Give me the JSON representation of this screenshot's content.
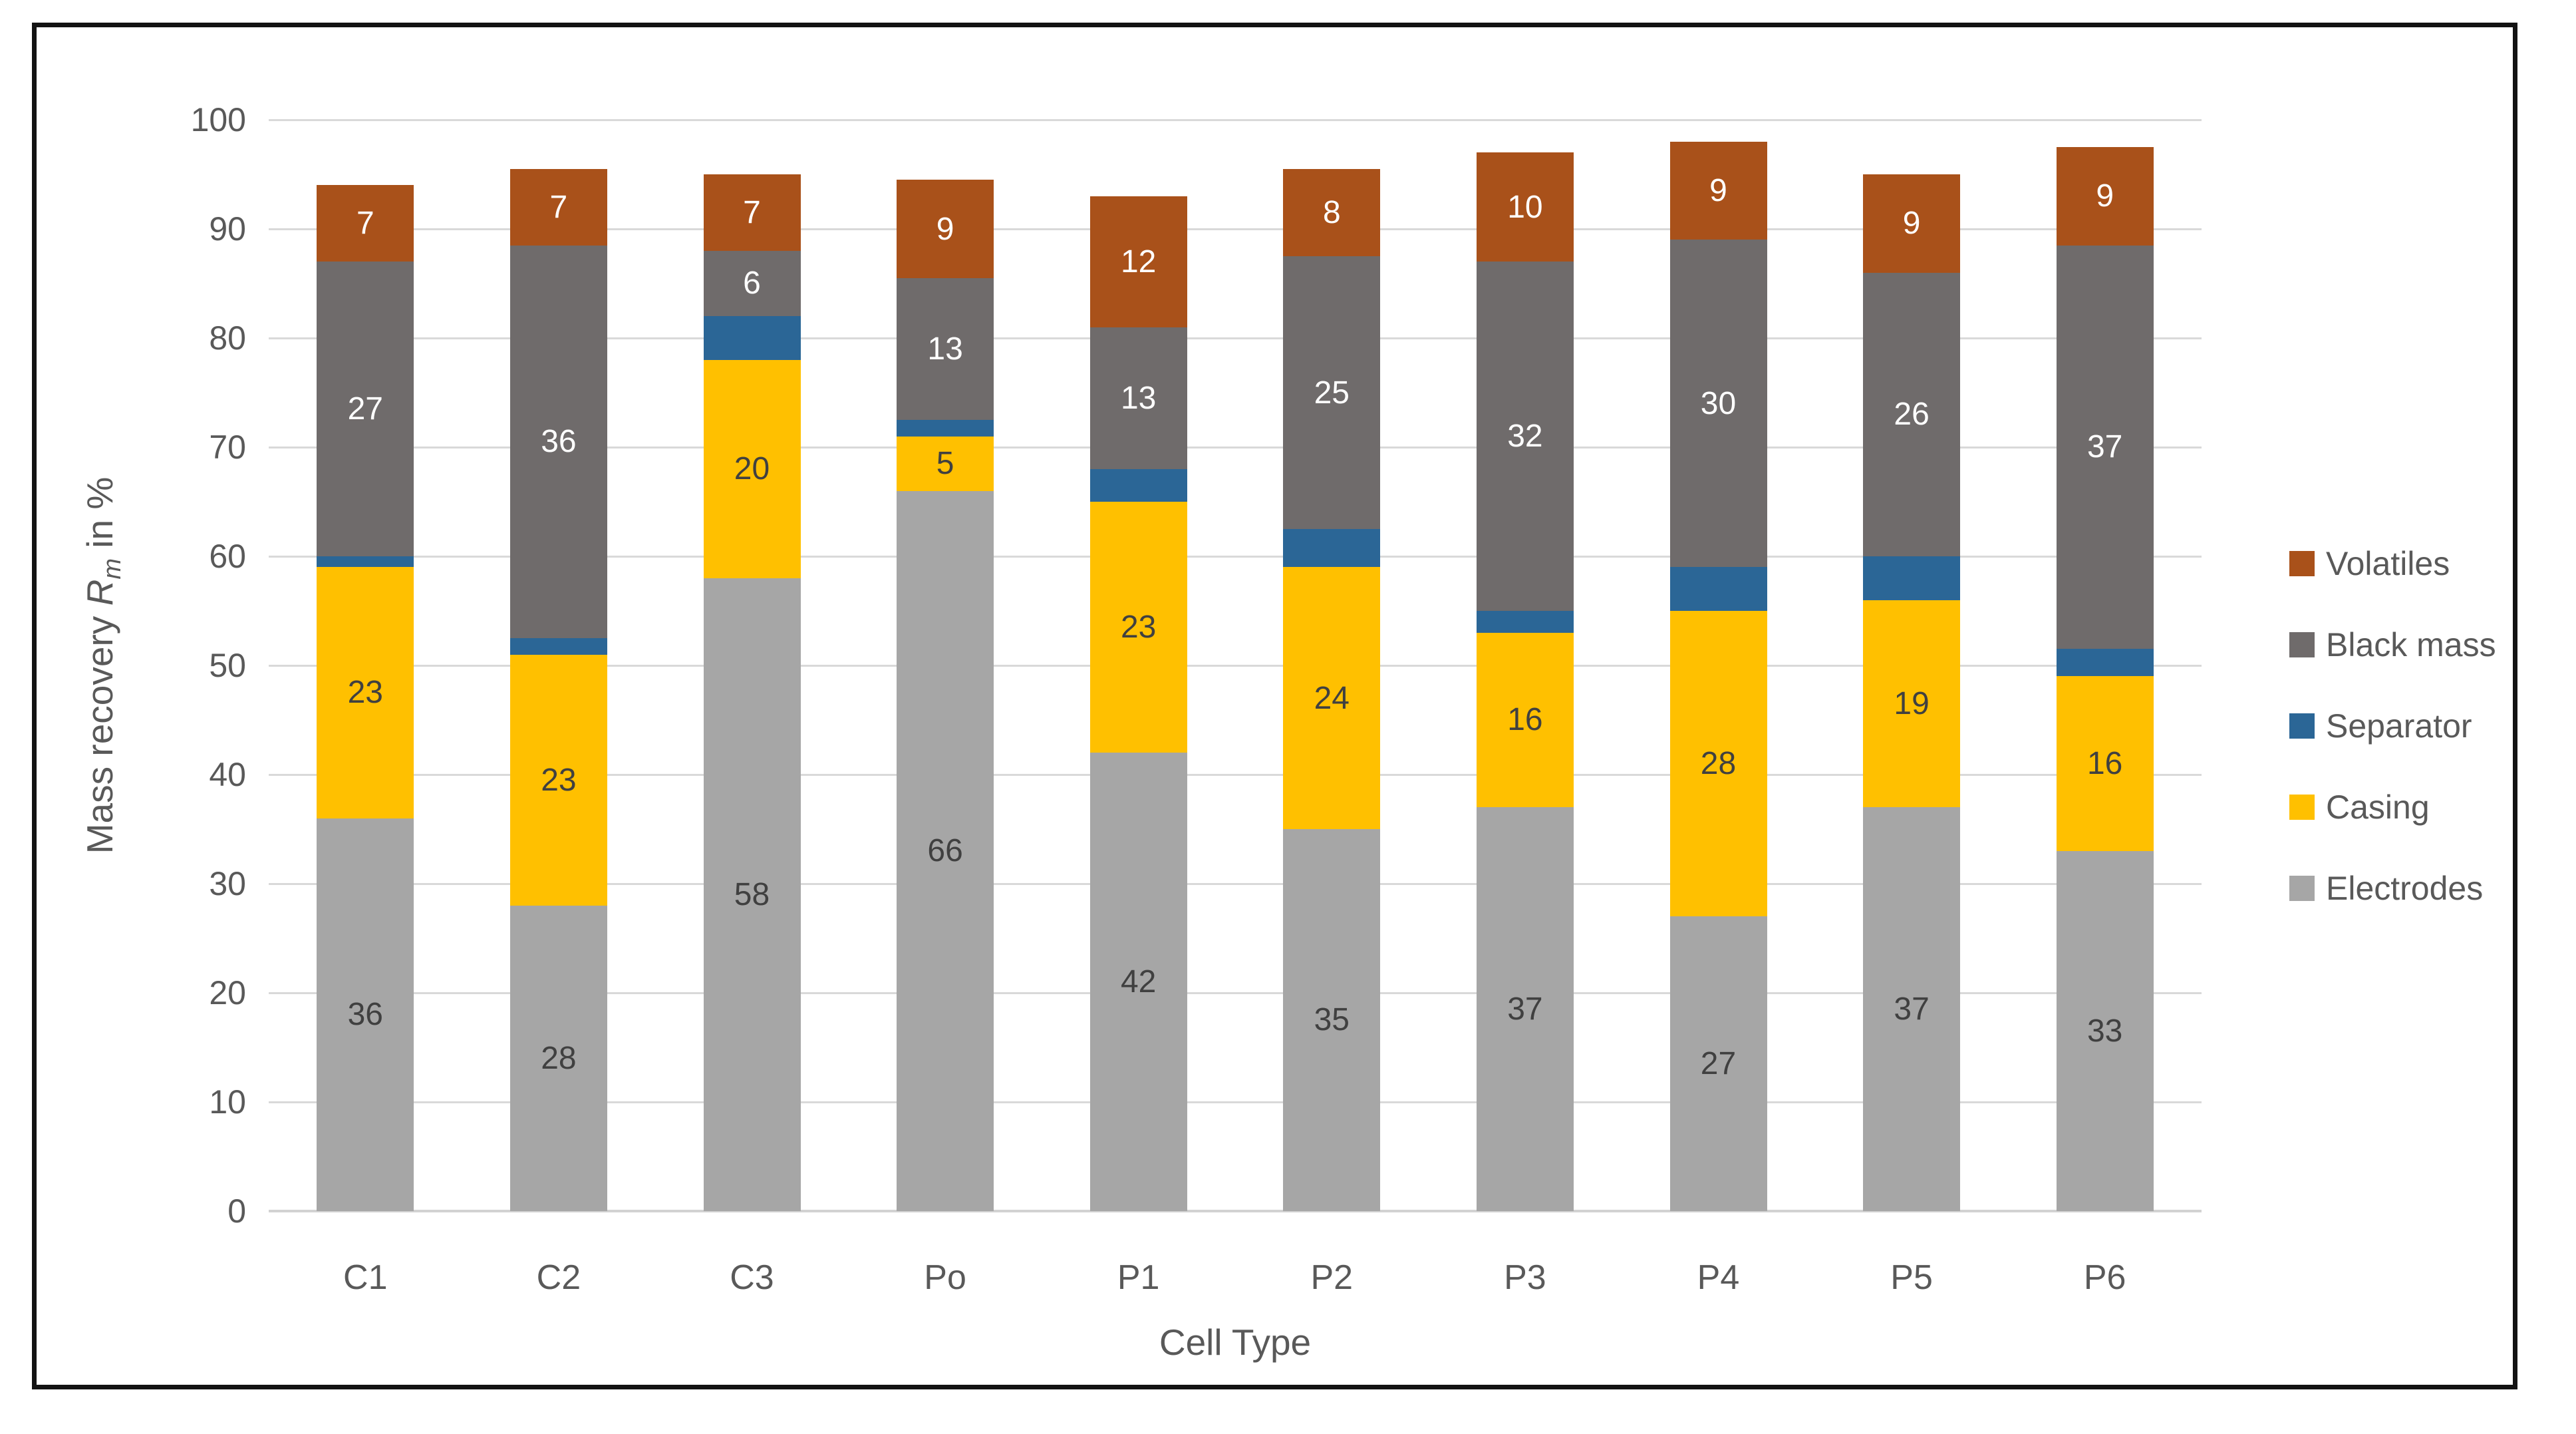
{
  "chart_data": {
    "type": "bar",
    "stacked": true,
    "title": "",
    "xlabel": "Cell Type",
    "ylabel": "Mass recovery Rm in %",
    "ylabel_parts": {
      "prefix": "Mass recovery ",
      "var": "R",
      "sub": "m",
      "suffix": " in %"
    },
    "categories": [
      "C1",
      "C2",
      "C3",
      "Po",
      "P1",
      "P2",
      "P3",
      "P4",
      "P5",
      "P6"
    ],
    "series": [
      {
        "name": "Electrodes",
        "color": "#A6A6A6",
        "label_color": "#404040",
        "show_labels": true,
        "values": [
          36,
          28,
          58,
          66,
          42,
          35,
          37,
          27,
          37,
          33
        ]
      },
      {
        "name": "Casing",
        "color": "#FFC000",
        "label_color": "#404040",
        "show_labels": true,
        "values": [
          23,
          23,
          20,
          5,
          23,
          24,
          16,
          28,
          19,
          16
        ]
      },
      {
        "name": "Separator",
        "color": "#2B6696",
        "label_color": "#FFFFFF",
        "show_labels": false,
        "values": [
          1,
          1.5,
          4,
          1.5,
          3,
          3.5,
          2,
          4,
          4,
          2.5
        ]
      },
      {
        "name": "Black mass",
        "color": "#6F6B6B",
        "label_color": "#FFFFFF",
        "show_labels": true,
        "values": [
          27,
          36,
          6,
          13,
          13,
          25,
          32,
          30,
          26,
          37
        ]
      },
      {
        "name": "Volatiles",
        "color": "#A9511A",
        "label_color": "#FFFFFF",
        "show_labels": true,
        "values": [
          7,
          7,
          7,
          9,
          12,
          8,
          10,
          9,
          9,
          9
        ]
      }
    ],
    "legend_order": [
      "Volatiles",
      "Black mass",
      "Separator",
      "Casing",
      "Electrodes"
    ],
    "ylim": [
      0,
      100
    ],
    "yticks": [
      0,
      10,
      20,
      30,
      40,
      50,
      60,
      70,
      80,
      90,
      100
    ],
    "grid": true,
    "legend_position": "right",
    "colors": {
      "gridline": "#D9D9D9",
      "axis_text": "#595959",
      "frame_border": "#131313",
      "background": "#FFFFFF"
    }
  }
}
